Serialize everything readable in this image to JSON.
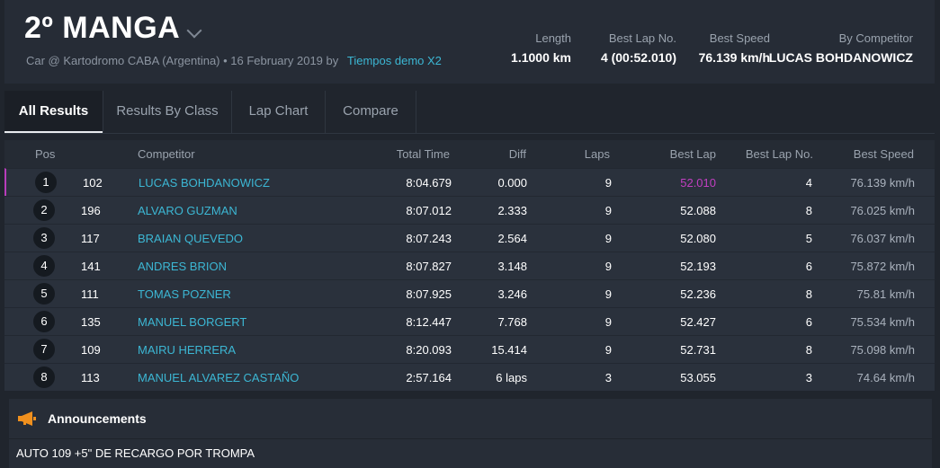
{
  "header": {
    "title": "2º MANGA",
    "subtitle": "Car @ Kartodromo CABA (Argentina) • 16 February 2019 by",
    "organizer_link": "Tiempos demo X2",
    "stats": [
      {
        "label": "Length",
        "value": "1.1000 km"
      },
      {
        "label": "Best Lap No.",
        "value": "4 (00:52.010)"
      },
      {
        "label": "Best Speed",
        "value": "76.139 km/h"
      },
      {
        "label": "By Competitor",
        "value": "LUCAS BOHDANOWICZ"
      }
    ]
  },
  "tabs": [
    {
      "label": "All Results",
      "active": true
    },
    {
      "label": "Results By Class",
      "active": false
    },
    {
      "label": "Lap Chart",
      "active": false
    },
    {
      "label": "Compare",
      "active": false
    }
  ],
  "table": {
    "headers": {
      "pos": "Pos",
      "competitor": "Competitor",
      "total_time": "Total Time",
      "diff": "Diff",
      "laps": "Laps",
      "best_lap": "Best Lap",
      "best_lap_no": "Best Lap No.",
      "best_speed": "Best Speed"
    },
    "rows": [
      {
        "pos": "1",
        "no": "102",
        "name": "LUCAS BOHDANOWICZ",
        "total": "8:04.679",
        "diff": "0.000",
        "laps": "9",
        "best": "52.010",
        "best_no": "4",
        "speed": "76.139 km/h"
      },
      {
        "pos": "2",
        "no": "196",
        "name": "ALVARO GUZMAN",
        "total": "8:07.012",
        "diff": "2.333",
        "laps": "9",
        "best": "52.088",
        "best_no": "8",
        "speed": "76.025 km/h"
      },
      {
        "pos": "3",
        "no": "117",
        "name": "BRAIAN QUEVEDO",
        "total": "8:07.243",
        "diff": "2.564",
        "laps": "9",
        "best": "52.080",
        "best_no": "5",
        "speed": "76.037 km/h"
      },
      {
        "pos": "4",
        "no": "141",
        "name": "ANDRES BRION",
        "total": "8:07.827",
        "diff": "3.148",
        "laps": "9",
        "best": "52.193",
        "best_no": "6",
        "speed": "75.872 km/h"
      },
      {
        "pos": "5",
        "no": "111",
        "name": "TOMAS POZNER",
        "total": "8:07.925",
        "diff": "3.246",
        "laps": "9",
        "best": "52.236",
        "best_no": "8",
        "speed": "75.81 km/h"
      },
      {
        "pos": "6",
        "no": "135",
        "name": "MANUEL BORGERT",
        "total": "8:12.447",
        "diff": "7.768",
        "laps": "9",
        "best": "52.427",
        "best_no": "6",
        "speed": "75.534 km/h"
      },
      {
        "pos": "7",
        "no": "109",
        "name": "MAIRU HERRERA",
        "total": "8:20.093",
        "diff": "15.414",
        "laps": "9",
        "best": "52.731",
        "best_no": "8",
        "speed": "75.098 km/h"
      },
      {
        "pos": "8",
        "no": "113",
        "name": "MANUEL ALVAREZ CASTAÑO",
        "total": "2:57.164",
        "diff": "6 laps",
        "laps": "3",
        "best": "53.055",
        "best_no": "3",
        "speed": "74.64 km/h"
      }
    ]
  },
  "announcements": {
    "title": "Announcements",
    "icon": "megaphone-icon",
    "text": "AUTO 109 +5\" DE RECARGO POR TROMPA"
  },
  "colors": {
    "accent": "#3cb7d4",
    "best_lap": "#c23fc2",
    "megaphone": "#f0901e"
  }
}
